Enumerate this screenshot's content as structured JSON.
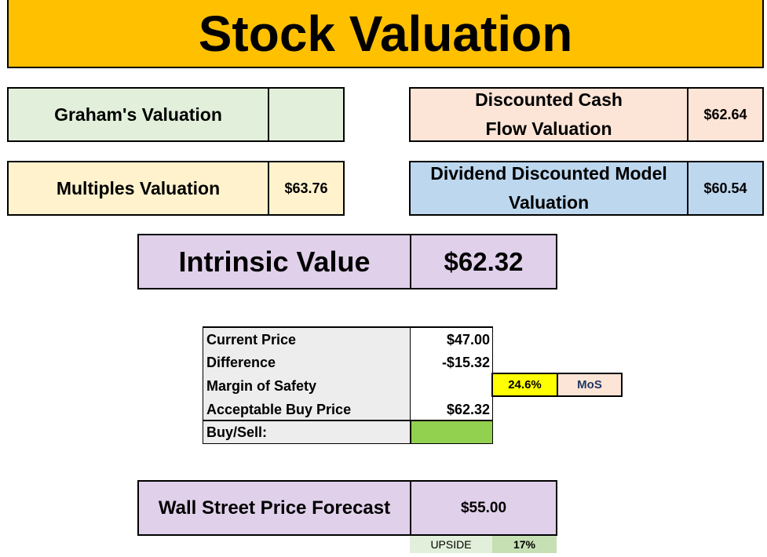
{
  "title": "Stock Valuation",
  "grahams": {
    "label": "Graham's Valuation",
    "value": ""
  },
  "dcf": {
    "label": "Discounted Cash Flow Valuation",
    "value": "$62.64"
  },
  "multiples": {
    "label": "Multiples Valuation",
    "value": "$63.76"
  },
  "ddm": {
    "label": "Dividend Discounted Model Valuation",
    "value": "$60.54"
  },
  "intrinsic": {
    "label": "Intrinsic Value",
    "value": "$62.32"
  },
  "table": {
    "current_price": {
      "label": "Current Price",
      "value": "$47.00"
    },
    "difference": {
      "label": "Difference",
      "value": "-$15.32"
    },
    "margin_of_safety": {
      "label": "Margin of Safety",
      "value": ""
    },
    "acceptable_buy_price": {
      "label": "Acceptable Buy Price",
      "value": "$62.32"
    },
    "buy_sell": {
      "label": "Buy/Sell:",
      "value": ""
    }
  },
  "mos": {
    "percent": "24.6%",
    "label": "MoS"
  },
  "wall_street": {
    "label": "Wall Street Price Forecast",
    "value": "$55.00"
  },
  "upside": {
    "label": "UPSIDE",
    "value": "17%"
  },
  "colors": {
    "title_bg": "#ffc000",
    "grahams_bg": "#e2efda",
    "dcf_bg": "#fce4d6",
    "multiples_bg": "#fff2cc",
    "ddm_bg": "#bdd7ee",
    "intrinsic_bg": "#e0d0ea",
    "table_label_bg": "#ededed",
    "buy_sell_signal": "#92d050",
    "mos_highlight": "#ffff00",
    "mos_label_bg": "#fce4d6",
    "upside_label_bg": "#e2efda",
    "upside_value_bg": "#c6e0b4"
  }
}
